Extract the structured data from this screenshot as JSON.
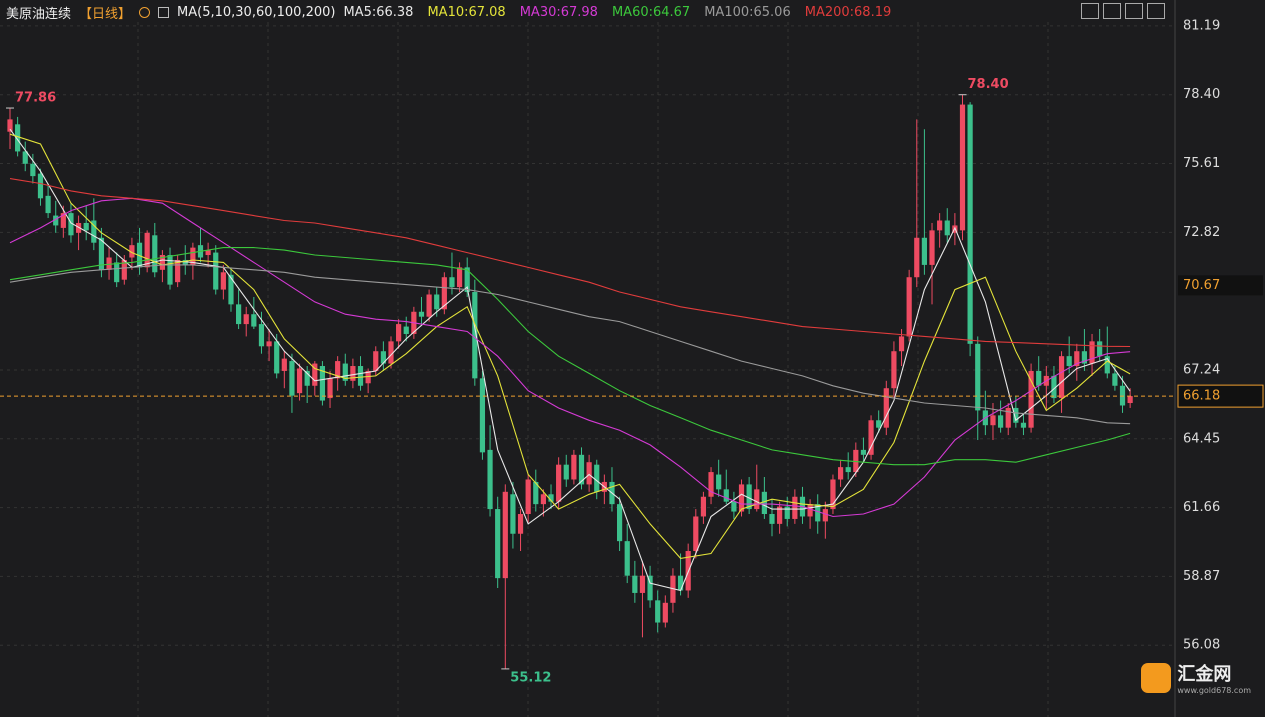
{
  "chart_data": {
    "type": "candlestick",
    "header": {
      "symbol": "美原油连续",
      "period": "【日线】",
      "indicator": "MA(5,10,30,60,100,200)"
    },
    "ylim": [
      53.17,
      82.24
    ],
    "yticks": [
      81.19,
      {
        "value": 78.4,
        "label": "78.40"
      },
      75.61,
      72.82,
      67.24,
      64.45,
      61.66,
      58.87,
      56.08
    ],
    "grid": true,
    "up_color": "#ee4b62",
    "down_color": "#3cc08c",
    "marker": 70.67,
    "last_price": 66.18,
    "last_price_color": "#f0a030",
    "annotations": [
      {
        "value": 77.86,
        "label": "77.86",
        "color": "#ee4b62"
      },
      {
        "value": 78.4,
        "label": "78.40",
        "color": "#ee4b62"
      },
      {
        "value": 55.12,
        "label": "55.12",
        "color": "#3cc08c"
      }
    ],
    "candles": [
      [
        76.9,
        77.86,
        76.2,
        77.4
      ],
      [
        77.2,
        77.5,
        75.9,
        76.1
      ],
      [
        76.1,
        76.5,
        75.3,
        75.6
      ],
      [
        75.6,
        76.0,
        74.8,
        75.1
      ],
      [
        75.2,
        75.4,
        73.9,
        74.2
      ],
      [
        74.3,
        74.8,
        73.4,
        73.6
      ],
      [
        73.5,
        74.1,
        72.8,
        73.1
      ],
      [
        73.0,
        73.9,
        72.6,
        73.6
      ],
      [
        73.6,
        74.0,
        72.4,
        72.7
      ],
      [
        72.8,
        73.5,
        72.1,
        73.2
      ],
      [
        73.2,
        73.9,
        72.5,
        72.9
      ],
      [
        73.3,
        74.2,
        72.1,
        72.4
      ],
      [
        72.6,
        73.0,
        71.0,
        71.3
      ],
      [
        71.3,
        72.2,
        70.9,
        71.8
      ],
      [
        71.6,
        72.0,
        70.6,
        70.8
      ],
      [
        70.9,
        71.9,
        70.7,
        71.7
      ],
      [
        71.8,
        72.6,
        71.3,
        72.3
      ],
      [
        72.4,
        73.0,
        71.1,
        71.4
      ],
      [
        71.4,
        72.9,
        71.2,
        72.8
      ],
      [
        72.7,
        73.2,
        71.0,
        71.2
      ],
      [
        71.3,
        72.1,
        70.8,
        71.9
      ],
      [
        71.9,
        72.2,
        70.5,
        70.7
      ],
      [
        70.8,
        71.9,
        70.6,
        71.7
      ],
      [
        71.7,
        72.3,
        71.1,
        71.5
      ],
      [
        71.5,
        72.4,
        70.9,
        72.2
      ],
      [
        72.3,
        73.0,
        71.6,
        71.8
      ],
      [
        71.9,
        72.4,
        71.4,
        72.1
      ],
      [
        72.0,
        72.3,
        70.3,
        70.5
      ],
      [
        70.5,
        71.5,
        70.1,
        71.2
      ],
      [
        71.1,
        71.4,
        69.6,
        69.9
      ],
      [
        69.9,
        70.5,
        68.9,
        69.1
      ],
      [
        69.1,
        69.8,
        68.6,
        69.5
      ],
      [
        69.5,
        70.2,
        68.9,
        69.0
      ],
      [
        69.1,
        69.6,
        67.9,
        68.2
      ],
      [
        68.2,
        68.9,
        67.6,
        68.4
      ],
      [
        68.4,
        68.7,
        66.9,
        67.1
      ],
      [
        67.2,
        68.0,
        66.5,
        67.7
      ],
      [
        67.6,
        67.9,
        65.5,
        66.2
      ],
      [
        66.3,
        67.5,
        66.0,
        67.3
      ],
      [
        67.2,
        67.4,
        65.9,
        66.6
      ],
      [
        66.6,
        67.6,
        66.2,
        67.5
      ],
      [
        67.4,
        67.6,
        65.8,
        66.0
      ],
      [
        66.1,
        67.2,
        65.7,
        66.9
      ],
      [
        66.9,
        67.8,
        66.4,
        67.6
      ],
      [
        67.5,
        67.9,
        66.6,
        66.8
      ],
      [
        66.8,
        67.7,
        66.5,
        67.4
      ],
      [
        67.4,
        67.8,
        66.4,
        66.6
      ],
      [
        66.7,
        67.3,
        66.3,
        67.2
      ],
      [
        67.2,
        68.2,
        67.0,
        68.0
      ],
      [
        68.0,
        68.4,
        67.2,
        67.5
      ],
      [
        67.5,
        68.6,
        67.3,
        68.4
      ],
      [
        68.4,
        69.3,
        68.1,
        69.1
      ],
      [
        69.0,
        69.4,
        68.4,
        68.7
      ],
      [
        68.7,
        69.8,
        68.5,
        69.6
      ],
      [
        69.6,
        70.2,
        69.1,
        69.4
      ],
      [
        69.4,
        70.5,
        69.2,
        70.3
      ],
      [
        70.3,
        70.6,
        69.4,
        69.7
      ],
      [
        69.7,
        71.2,
        69.5,
        71.0
      ],
      [
        71.0,
        72.0,
        70.3,
        70.6
      ],
      [
        70.6,
        71.6,
        70.4,
        71.4
      ],
      [
        71.4,
        71.8,
        70.2,
        70.4
      ],
      [
        70.4,
        70.9,
        66.6,
        66.9
      ],
      [
        66.9,
        67.2,
        63.6,
        63.9
      ],
      [
        64.0,
        65.0,
        61.3,
        61.6
      ],
      [
        61.6,
        62.1,
        58.4,
        58.8
      ],
      [
        58.8,
        62.6,
        55.12,
        62.3
      ],
      [
        62.2,
        62.7,
        60.0,
        60.6
      ],
      [
        60.6,
        61.6,
        59.9,
        61.4
      ],
      [
        61.4,
        63.0,
        61.0,
        62.8
      ],
      [
        62.7,
        63.2,
        61.5,
        61.8
      ],
      [
        61.8,
        62.4,
        61.3,
        62.2
      ],
      [
        62.2,
        62.6,
        61.6,
        61.9
      ],
      [
        61.9,
        63.7,
        61.6,
        63.4
      ],
      [
        63.4,
        63.8,
        62.5,
        62.8
      ],
      [
        62.8,
        64.0,
        62.6,
        63.8
      ],
      [
        63.8,
        64.1,
        62.4,
        62.6
      ],
      [
        62.6,
        63.8,
        62.3,
        63.5
      ],
      [
        63.4,
        63.6,
        62.0,
        62.3
      ],
      [
        62.3,
        63.0,
        61.8,
        62.7
      ],
      [
        62.7,
        63.3,
        61.5,
        61.8
      ],
      [
        61.8,
        62.1,
        59.9,
        60.3
      ],
      [
        60.3,
        61.0,
        58.6,
        58.9
      ],
      [
        58.9,
        59.5,
        57.8,
        58.2
      ],
      [
        58.2,
        59.5,
        56.4,
        58.9
      ],
      [
        58.9,
        59.3,
        57.6,
        57.9
      ],
      [
        57.9,
        58.3,
        56.6,
        57.0
      ],
      [
        57.0,
        58.1,
        56.8,
        57.8
      ],
      [
        57.8,
        59.2,
        57.4,
        58.9
      ],
      [
        58.9,
        59.8,
        58.1,
        58.3
      ],
      [
        58.3,
        60.2,
        58.0,
        59.9
      ],
      [
        59.9,
        61.6,
        59.6,
        61.3
      ],
      [
        61.3,
        62.3,
        61.0,
        62.1
      ],
      [
        62.1,
        63.3,
        61.8,
        63.1
      ],
      [
        63.0,
        63.6,
        62.1,
        62.4
      ],
      [
        62.4,
        63.2,
        61.8,
        61.9
      ],
      [
        61.9,
        62.3,
        61.2,
        61.5
      ],
      [
        61.5,
        62.8,
        61.3,
        62.6
      ],
      [
        62.6,
        62.9,
        61.4,
        61.6
      ],
      [
        61.6,
        63.4,
        61.5,
        62.4
      ],
      [
        62.3,
        62.9,
        61.2,
        61.4
      ],
      [
        61.4,
        62.0,
        60.5,
        61.0
      ],
      [
        61.0,
        61.9,
        60.6,
        61.7
      ],
      [
        61.7,
        62.1,
        60.9,
        61.2
      ],
      [
        61.2,
        62.4,
        61.0,
        62.1
      ],
      [
        62.1,
        62.5,
        61.0,
        61.3
      ],
      [
        61.3,
        62.0,
        60.8,
        61.8
      ],
      [
        61.8,
        62.2,
        60.6,
        61.1
      ],
      [
        61.1,
        61.9,
        60.4,
        61.6
      ],
      [
        61.6,
        63.0,
        61.4,
        62.8
      ],
      [
        62.8,
        63.6,
        62.5,
        63.3
      ],
      [
        63.3,
        63.9,
        62.8,
        63.1
      ],
      [
        63.1,
        64.3,
        62.9,
        64.0
      ],
      [
        64.0,
        64.5,
        63.5,
        63.8
      ],
      [
        63.8,
        65.4,
        63.6,
        65.2
      ],
      [
        65.2,
        65.6,
        64.7,
        64.9
      ],
      [
        64.9,
        66.8,
        64.6,
        66.5
      ],
      [
        66.5,
        68.4,
        66.1,
        68.0
      ],
      [
        68.0,
        68.9,
        67.4,
        68.6
      ],
      [
        68.6,
        71.3,
        68.4,
        71.0
      ],
      [
        71.0,
        77.4,
        70.6,
        72.6
      ],
      [
        72.6,
        77.0,
        71.1,
        71.5
      ],
      [
        71.5,
        73.2,
        69.9,
        72.9
      ],
      [
        72.9,
        73.6,
        72.2,
        73.3
      ],
      [
        73.3,
        73.8,
        72.4,
        72.7
      ],
      [
        72.8,
        73.6,
        72.3,
        73.1
      ],
      [
        72.9,
        78.4,
        72.5,
        78.0
      ],
      [
        78.0,
        78.1,
        67.8,
        68.3
      ],
      [
        68.3,
        68.6,
        64.4,
        65.6
      ],
      [
        65.6,
        66.4,
        64.6,
        65.0
      ],
      [
        65.0,
        65.9,
        64.4,
        65.4
      ],
      [
        65.4,
        66.0,
        64.7,
        64.9
      ],
      [
        64.9,
        65.9,
        64.6,
        65.7
      ],
      [
        65.7,
        66.2,
        64.9,
        65.1
      ],
      [
        65.1,
        65.5,
        64.6,
        64.9
      ],
      [
        64.9,
        67.5,
        64.7,
        67.2
      ],
      [
        67.2,
        67.8,
        66.4,
        66.6
      ],
      [
        66.6,
        67.4,
        65.6,
        67.0
      ],
      [
        67.0,
        67.4,
        65.9,
        66.1
      ],
      [
        66.1,
        68.0,
        65.5,
        67.8
      ],
      [
        67.8,
        68.6,
        67.1,
        67.4
      ],
      [
        67.4,
        68.3,
        66.8,
        68.0
      ],
      [
        68.0,
        68.9,
        67.2,
        67.5
      ],
      [
        67.5,
        68.7,
        67.0,
        68.4
      ],
      [
        68.4,
        68.9,
        67.6,
        67.8
      ],
      [
        67.8,
        69.0,
        66.9,
        67.1
      ],
      [
        67.1,
        67.4,
        66.4,
        66.6
      ],
      [
        66.6,
        67.0,
        65.5,
        65.8
      ],
      [
        65.9,
        66.5,
        65.7,
        66.18
      ]
    ],
    "ma_x": [
      0,
      4,
      8,
      12,
      16,
      20,
      24,
      28,
      32,
      36,
      40,
      44,
      48,
      52,
      56,
      60,
      64,
      68,
      72,
      76,
      80,
      84,
      88,
      92,
      96,
      100,
      104,
      108,
      112,
      116,
      120,
      124,
      128,
      132,
      136,
      140,
      144,
      147
    ],
    "series": [
      {
        "name": "MA5:66.38",
        "color": "#e8e8e8",
        "values": [
          77.0,
          75.3,
          73.2,
          72.5,
          71.4,
          71.7,
          71.6,
          71.4,
          69.7,
          68.0,
          66.8,
          67.0,
          67.2,
          68.5,
          69.6,
          70.6,
          64.0,
          61.0,
          61.9,
          63.0,
          62.0,
          58.6,
          58.3,
          61.3,
          62.2,
          61.6,
          61.6,
          61.8,
          63.5,
          66.0,
          70.5,
          73.0,
          70.0,
          65.2,
          66.2,
          67.3,
          67.7,
          66.38
        ]
      },
      {
        "name": "MA10:67.08",
        "color": "#e3e33a",
        "values": [
          76.8,
          76.4,
          74.0,
          72.8,
          72.0,
          71.5,
          71.7,
          71.6,
          70.5,
          68.5,
          67.3,
          66.9,
          67.0,
          67.9,
          69.0,
          69.8,
          67.0,
          63.0,
          61.6,
          62.2,
          62.6,
          61.0,
          59.6,
          59.8,
          61.6,
          62.0,
          61.8,
          61.7,
          62.4,
          64.3,
          67.6,
          70.5,
          71.0,
          68.0,
          65.6,
          66.5,
          67.6,
          67.08
        ]
      },
      {
        "name": "MA30:67.98",
        "color": "#d43ad4",
        "values": [
          72.4,
          73.0,
          73.7,
          74.1,
          74.2,
          74.0,
          73.2,
          72.4,
          71.6,
          70.8,
          70.0,
          69.5,
          69.3,
          69.2,
          69.0,
          68.8,
          67.8,
          66.4,
          65.7,
          65.2,
          64.8,
          64.2,
          63.3,
          62.3,
          61.8,
          61.8,
          61.7,
          61.3,
          61.4,
          61.8,
          62.9,
          64.4,
          65.3,
          66.0,
          66.8,
          67.5,
          67.9,
          67.98
        ]
      },
      {
        "name": "MA60:64.67",
        "color": "#3cc83c",
        "values": [
          70.9,
          71.1,
          71.3,
          71.5,
          71.6,
          71.8,
          72.0,
          72.2,
          72.2,
          72.1,
          71.9,
          71.8,
          71.7,
          71.6,
          71.5,
          71.3,
          70.1,
          68.8,
          67.8,
          67.1,
          66.4,
          65.8,
          65.3,
          64.8,
          64.4,
          64.0,
          63.8,
          63.6,
          63.5,
          63.4,
          63.4,
          63.6,
          63.6,
          63.5,
          63.8,
          64.1,
          64.4,
          64.67
        ]
      },
      {
        "name": "MA100:65.06",
        "color": "#9a9a9a",
        "values": [
          70.8,
          71.0,
          71.2,
          71.3,
          71.4,
          71.5,
          71.5,
          71.4,
          71.3,
          71.2,
          71.0,
          70.9,
          70.8,
          70.7,
          70.6,
          70.5,
          70.3,
          70.0,
          69.7,
          69.4,
          69.2,
          68.8,
          68.4,
          68.0,
          67.6,
          67.3,
          67.0,
          66.6,
          66.3,
          66.1,
          65.9,
          65.8,
          65.7,
          65.5,
          65.4,
          65.3,
          65.1,
          65.06
        ]
      },
      {
        "name": "MA200:68.19",
        "color": "#e03c3c",
        "values": [
          75.0,
          74.8,
          74.5,
          74.3,
          74.2,
          74.1,
          73.9,
          73.7,
          73.5,
          73.3,
          73.2,
          73.0,
          72.8,
          72.6,
          72.3,
          72.0,
          71.7,
          71.4,
          71.1,
          70.8,
          70.4,
          70.1,
          69.8,
          69.6,
          69.4,
          69.2,
          69.0,
          68.9,
          68.8,
          68.7,
          68.6,
          68.5,
          68.4,
          68.35,
          68.3,
          68.25,
          68.2,
          68.19
        ]
      }
    ],
    "watermark": {
      "name": "汇金网",
      "url": "www.gold678.com"
    }
  }
}
